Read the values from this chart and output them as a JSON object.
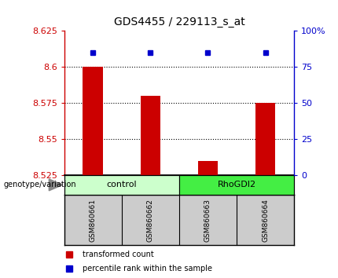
{
  "title": "GDS4455 / 229113_s_at",
  "samples": [
    "GSM860661",
    "GSM860662",
    "GSM860663",
    "GSM860664"
  ],
  "bar_values": [
    8.6,
    8.58,
    8.535,
    8.575
  ],
  "percentile_values": [
    85,
    85,
    85,
    85
  ],
  "ymin": 8.525,
  "ymax": 8.625,
  "yticks": [
    8.525,
    8.55,
    8.575,
    8.6,
    8.625
  ],
  "ytick_labels": [
    "8.525",
    "8.55",
    "8.575",
    "8.6",
    "8.625"
  ],
  "right_yticks": [
    0,
    25,
    50,
    75,
    100
  ],
  "right_ytick_labels": [
    "0",
    "25",
    "50",
    "75",
    "100%"
  ],
  "bar_color": "#cc0000",
  "dot_color": "#0000cc",
  "bar_width": 0.35,
  "left_axis_color": "#cc0000",
  "right_axis_color": "#0000cc",
  "bg_color": "white",
  "legend_items": [
    "transformed count",
    "percentile rank within the sample"
  ],
  "label_genotype": "genotype/variation",
  "sample_bg_color": "#cccccc",
  "ctrl_color": "#ccffcc",
  "rhogdi_color": "#44ee44",
  "n_samples": 4,
  "grid_linestyle": ":",
  "grid_linewidth": 0.8,
  "grid_color": "black"
}
